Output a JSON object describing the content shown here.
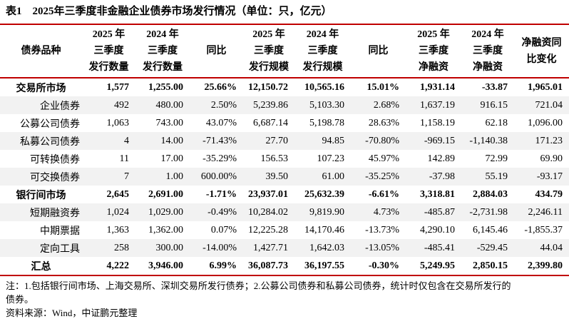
{
  "title": "表1　2025年三季度非金融企业债券市场发行情况（单位：只，亿元）",
  "accent_color": "#c00000",
  "stripe_color": "#f2f2f2",
  "table": {
    "headers": [
      "债券品种",
      "2025 年\n三季度\n发行数量",
      "2024 年\n三季度\n发行数量",
      "同比",
      "2025 年\n三季度\n发行规模",
      "2024 年\n三季度\n发行规模",
      "同比",
      "2025 年\n三季度\n净融资",
      "2024 年\n三季度\n净融资",
      "净融资同\n比变化"
    ],
    "rows": [
      {
        "name": "交易所市场",
        "bold": true,
        "values": [
          "1,577",
          "1,255.00",
          "25.66%",
          "12,150.72",
          "10,565.16",
          "15.01%",
          "1,931.14",
          "-33.87",
          "1,965.01"
        ]
      },
      {
        "name": "企业债券",
        "bold": false,
        "values": [
          "492",
          "480.00",
          "2.50%",
          "5,239.86",
          "5,103.30",
          "2.68%",
          "1,637.19",
          "916.15",
          "721.04"
        ]
      },
      {
        "name": "公募公司债券",
        "bold": false,
        "values": [
          "1,063",
          "743.00",
          "43.07%",
          "6,687.14",
          "5,198.78",
          "28.63%",
          "1,158.19",
          "62.18",
          "1,096.00"
        ]
      },
      {
        "name": "私募公司债券",
        "bold": false,
        "values": [
          "4",
          "14.00",
          "-71.43%",
          "27.70",
          "94.85",
          "-70.80%",
          "-969.15",
          "-1,140.38",
          "171.23"
        ]
      },
      {
        "name": "可转换债券",
        "bold": false,
        "values": [
          "11",
          "17.00",
          "-35.29%",
          "156.53",
          "107.23",
          "45.97%",
          "142.89",
          "72.99",
          "69.90"
        ]
      },
      {
        "name": "可交换债券",
        "bold": false,
        "values": [
          "7",
          "1.00",
          "600.00%",
          "39.50",
          "61.00",
          "-35.25%",
          "-37.98",
          "55.19",
          "-93.17"
        ]
      },
      {
        "name": "银行间市场",
        "bold": true,
        "values": [
          "2,645",
          "2,691.00",
          "-1.71%",
          "23,937.01",
          "25,632.39",
          "-6.61%",
          "3,318.81",
          "2,884.03",
          "434.79"
        ]
      },
      {
        "name": "短期融资券",
        "bold": false,
        "values": [
          "1,024",
          "1,029.00",
          "-0.49%",
          "10,284.02",
          "9,819.90",
          "4.73%",
          "-485.87",
          "-2,731.98",
          "2,246.11"
        ]
      },
      {
        "name": "中期票据",
        "bold": false,
        "values": [
          "1,363",
          "1,362.00",
          "0.07%",
          "12,225.28",
          "14,170.46",
          "-13.73%",
          "4,290.10",
          "6,145.46",
          "-1,855.37"
        ]
      },
      {
        "name": "定向工具",
        "bold": false,
        "values": [
          "258",
          "300.00",
          "-14.00%",
          "1,427.71",
          "1,642.03",
          "-13.05%",
          "-485.41",
          "-529.45",
          "44.04"
        ]
      },
      {
        "name": "汇总",
        "bold": true,
        "values": [
          "4,222",
          "3,946.00",
          "6.99%",
          "36,087.73",
          "36,197.55",
          "-0.30%",
          "5,249.95",
          "2,850.15",
          "2,399.80"
        ]
      }
    ]
  },
  "notes": "注：1.包括银行间市场、上海交易所、深圳交易所发行债券；2.公募公司债券和私募公司债券，统计时仅包含在交易所发行的\n债券。",
  "source": "资料来源：Wind，中证鹏元整理"
}
